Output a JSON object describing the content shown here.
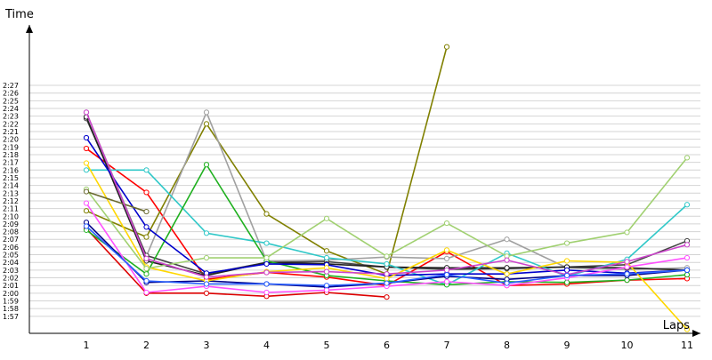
{
  "chart_data": {
    "type": "line",
    "title": "",
    "xlabel": "Laps",
    "ylabel": "Time",
    "x": [
      1,
      2,
      3,
      4,
      5,
      6,
      7,
      8,
      9,
      10,
      11
    ],
    "x_tick_labels": [
      "1",
      "2",
      "3",
      "4",
      "5",
      "6",
      "7",
      "8",
      "9",
      "10",
      "11"
    ],
    "y_tick_labels": [
      "1:57",
      "1:58",
      "1:59",
      "2:00",
      "2:01",
      "2:02",
      "2:03",
      "2:04",
      "2:05",
      "2:06",
      "2:07",
      "2:08",
      "2:09",
      "2:10",
      "2:11",
      "2:12",
      "2:13",
      "2:14",
      "2:15",
      "2:16",
      "2:17",
      "2:18",
      "2:19",
      "2:20",
      "2:21",
      "2:22",
      "2:23",
      "2:24",
      "2:25",
      "2:26",
      "2:27"
    ],
    "ylim_seconds": [
      116,
      149
    ],
    "grid": true,
    "legend": "none",
    "series": [
      {
        "color": "#ff0000",
        "values": [
          138.8,
          133.1,
          121.8,
          122.7,
          122.1,
          121.0,
          125.4,
          121.0,
          121.2,
          121.7,
          121.9
        ]
      },
      {
        "color": "#dd0000",
        "values": [
          128.4,
          120.0,
          120.0,
          119.6,
          120.1,
          119.5,
          null,
          null,
          null,
          null,
          null
        ]
      },
      {
        "color": "#808000",
        "values": [
          130.7,
          127.3,
          142.0,
          130.3,
          125.5,
          122.5,
          152.0,
          null,
          null,
          null,
          null
        ]
      },
      {
        "color": "#a0a0a0",
        "values": [
          143.5,
          124.8,
          143.5,
          124.2,
          124.3,
          124.7,
          124.5,
          127.0,
          123.3,
          123.1,
          123.3
        ]
      },
      {
        "color": "#444444",
        "values": [
          142.7,
          124.9,
          122.5,
          124.0,
          124.1,
          123.4,
          123.1,
          123.2,
          123.4,
          123.7,
          126.8
        ]
      },
      {
        "color": "#222222",
        "values": [
          142.9,
          124.2,
          122.3,
          124.0,
          123.8,
          123.4,
          123.3,
          123.3,
          123.4,
          123.3,
          123.0
        ]
      },
      {
        "color": "#30c8c8",
        "values": [
          136.0,
          136.0,
          127.8,
          126.5,
          124.6,
          123.8,
          121.1,
          125.2,
          122.2,
          124.4,
          131.5
        ]
      },
      {
        "color": "#1fb01f",
        "values": [
          128.2,
          122.5,
          136.7,
          124.2,
          122.3,
          121.6,
          121.1,
          121.5,
          121.4,
          121.7,
          122.4
        ]
      },
      {
        "color": "#0000cc",
        "values": [
          140.2,
          128.6,
          122.6,
          123.8,
          123.7,
          122.3,
          122.5,
          122.5,
          123.0,
          122.6,
          123.0
        ]
      },
      {
        "color": "#000088",
        "values": [
          129.2,
          121.4,
          121.6,
          121.2,
          120.8,
          121.3,
          122.2,
          121.8,
          122.3,
          122.3,
          123.0
        ]
      },
      {
        "color": "#ffd700",
        "values": [
          136.9,
          123.4,
          121.6,
          122.8,
          123.3,
          121.9,
          125.6,
          122.5,
          124.2,
          124.0,
          115.3
        ]
      },
      {
        "color": "#a0d070",
        "values": [
          133.5,
          123.2,
          124.6,
          124.6,
          129.7,
          124.8,
          129.1,
          124.8,
          126.5,
          127.9,
          137.6
        ]
      },
      {
        "color": "#6a6a30",
        "values": [
          133.2,
          130.6,
          null,
          null,
          null,
          null,
          null,
          null,
          null,
          null,
          null
        ]
      },
      {
        "color": "#ff50ff",
        "values": [
          131.7,
          120.1,
          120.9,
          120.1,
          120.4,
          120.9,
          121.5,
          121.0,
          122.0,
          123.4,
          124.6
        ]
      },
      {
        "color": "#cc44cc",
        "values": [
          143.5,
          124.5,
          122.1,
          122.7,
          122.8,
          122.5,
          123.0,
          124.3,
          122.4,
          124.1,
          126.3
        ]
      },
      {
        "color": "#2a60ff",
        "values": [
          128.7,
          121.6,
          121.2,
          121.2,
          121.0,
          121.3,
          122.4,
          121.3,
          122.3,
          122.5,
          123.0
        ]
      }
    ]
  }
}
